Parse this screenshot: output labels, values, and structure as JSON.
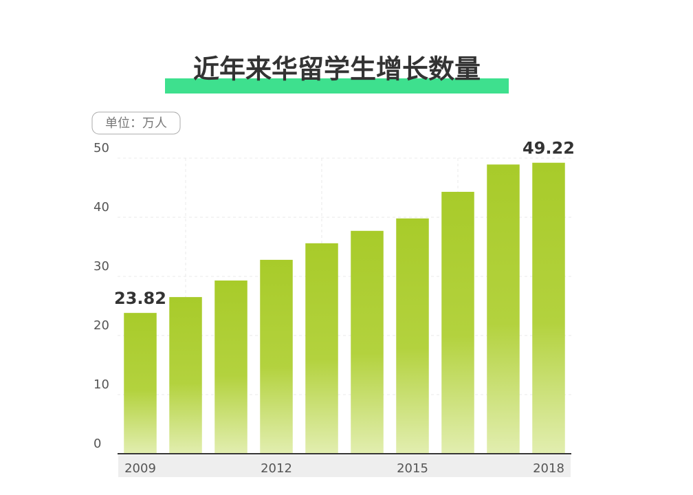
{
  "chart_data": {
    "type": "bar",
    "title": "近年来华留学生增长数量",
    "unit": "单位：万人",
    "categories": [
      "2009",
      null,
      null,
      "2012",
      null,
      null,
      "2015",
      null,
      null,
      "2018"
    ],
    "values": [
      23.82,
      26.5,
      29.3,
      32.8,
      35.6,
      37.7,
      39.8,
      44.3,
      48.92,
      49.22
    ],
    "value_labels": [
      "23.82",
      null,
      null,
      null,
      null,
      null,
      null,
      null,
      null,
      "49.22"
    ],
    "color": "#a8cb2a",
    "ylim": [
      0,
      50
    ],
    "yticks": [
      0,
      10,
      20,
      30,
      40,
      50
    ],
    "grid": true
  }
}
